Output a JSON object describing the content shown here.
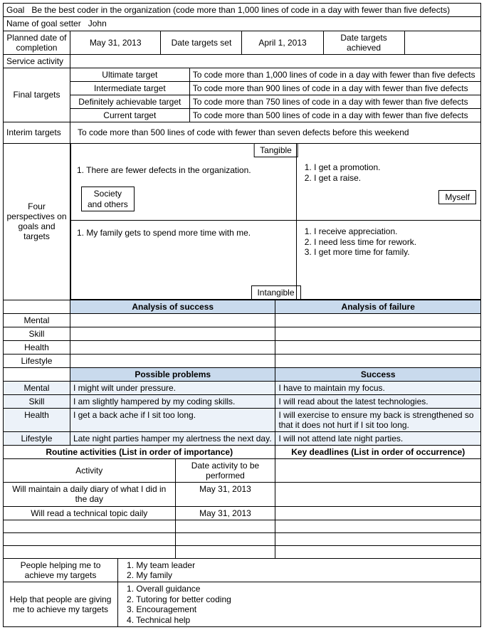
{
  "header": {
    "goal_label": "Goal",
    "goal_text": "Be the best coder in the organization (code more than 1,000 lines of code in a day with fewer than five defects)",
    "name_label": "Name of goal setter",
    "name_value": "John",
    "planned_date_label": "Planned date of completion",
    "planned_date_value": "May 31, 2013",
    "date_set_label": "Date targets set",
    "date_set_value": "April 1, 2013",
    "date_achieved_label": "Date targets achieved",
    "date_achieved_value": "",
    "service_activity_label": "Service activity",
    "service_activity_value": ""
  },
  "final_targets": {
    "label": "Final targets",
    "rows": [
      {
        "k": "Ultimate target",
        "v": "To code more than 1,000 lines of code in a day with fewer than five defects"
      },
      {
        "k": "Intermediate target",
        "v": "To code more than 900 lines of code in a day with fewer than five defects"
      },
      {
        "k": "Definitely achievable target",
        "v": "To code more than 750 lines of code in a day with fewer than five defects"
      },
      {
        "k": "Current target",
        "v": "To code more than 500 lines of code in a day with fewer than five defects"
      }
    ]
  },
  "interim": {
    "label": "Interim targets",
    "value": "To code more than 500 lines of code with fewer than seven defects before this weekend"
  },
  "perspectives": {
    "label": "Four perspectives on goals and targets",
    "tangible": "Tangible",
    "intangible": "Intangible",
    "society": "Society and others",
    "myself": "Myself",
    "tl": "1. There are fewer defects in the organization.",
    "tr": [
      "1. I get a promotion.",
      "2. I get a raise."
    ],
    "bl": "1. My family gets to spend more time with me.",
    "br": [
      "1. I receive appreciation.",
      "2. I need less time for rework.",
      "3. I get more time for family."
    ]
  },
  "analysis": {
    "success_hdr": "Analysis of success",
    "failure_hdr": "Analysis of failure",
    "rows": [
      "Mental",
      "Skill",
      "Health",
      "Lifestyle"
    ]
  },
  "problems": {
    "problems_hdr": "Possible problems",
    "success_hdr": "Success",
    "rows": [
      {
        "k": "Mental",
        "p": "I might wilt under pressure.",
        "s": "I have to maintain my focus."
      },
      {
        "k": "Skill",
        "p": "I am slightly hampered by my coding skills.",
        "s": "I will read about the latest technologies."
      },
      {
        "k": "Health",
        "p": "I get a back ache if I sit too long.",
        "s": "I will exercise to ensure my back is strengthened so that it does not hurt if I sit too long."
      },
      {
        "k": "Lifestyle",
        "p": "Late night parties hamper my alertness the next day.",
        "s": "I will not attend late night parties."
      }
    ]
  },
  "routine": {
    "left_hdr": "Routine activities (List in order of importance)",
    "right_hdr": "Key deadlines (List in order of occurrence)",
    "activity_hdr": "Activity",
    "date_hdr": "Date activity to be performed",
    "rows": [
      {
        "a": "Will maintain a daily diary of what I did in the day",
        "d": "May 31, 2013"
      },
      {
        "a": "Will read a technical topic daily",
        "d": "May 31, 2013"
      },
      {
        "a": "",
        "d": ""
      },
      {
        "a": "",
        "d": ""
      },
      {
        "a": "",
        "d": ""
      }
    ]
  },
  "helpers": {
    "people_label": "People helping me to achieve my targets",
    "people_list": [
      "1. My team leader",
      "2. My family"
    ],
    "help_label": "Help that people are giving me to achieve my targets",
    "help_list": [
      "1. Overall guidance",
      "2. Tutoring for better coding",
      "3. Encouragement",
      "4. Technical help"
    ]
  }
}
